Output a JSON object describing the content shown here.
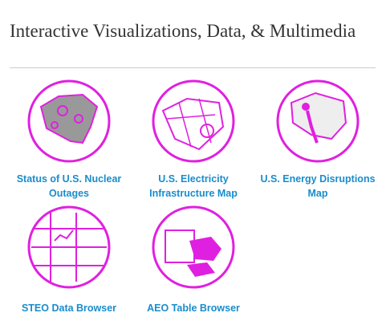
{
  "header": {
    "title": "Interactive Visualizations, Data, & Multimedia"
  },
  "items": [
    {
      "label": "Status of U.S. Nuclear Outages"
    },
    {
      "label": "U.S. Electricity Infrastructure Map"
    },
    {
      "label": "U.S. Energy Disruptions Map"
    },
    {
      "label": "STEO Data Browser"
    },
    {
      "label": "AEO Table Browser"
    }
  ]
}
